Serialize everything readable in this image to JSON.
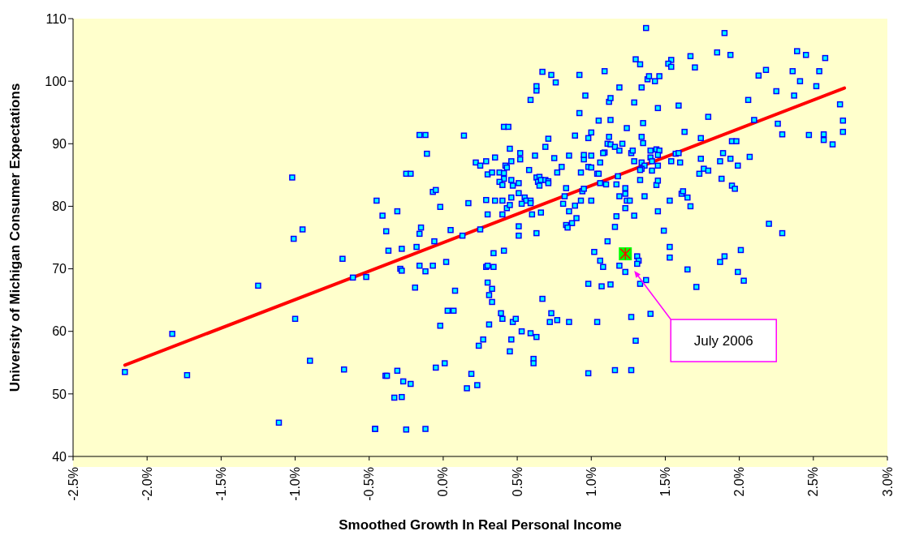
{
  "chart_data": {
    "type": "scatter",
    "xlabel": "Smoothed Growth In Real Personal Income",
    "ylabel": "University of Michigan Consumer Expectations",
    "xlim": [
      -2.5,
      3.0
    ],
    "xticks": [
      {
        "value": -2.5,
        "label": "-2.5%"
      },
      {
        "value": -2.0,
        "label": "-2.0%"
      },
      {
        "value": -1.5,
        "label": "-1.5%"
      },
      {
        "value": -1.0,
        "label": "-1.0%"
      },
      {
        "value": -0.5,
        "label": "-0.5%"
      },
      {
        "value": 0,
        "label": "0.0%"
      },
      {
        "value": 0.5,
        "label": "0.5%"
      },
      {
        "value": 1.0,
        "label": "1.0%"
      },
      {
        "value": 1.5,
        "label": "1.5%"
      },
      {
        "value": 2.0,
        "label": "2.0%"
      },
      {
        "value": 2.5,
        "label": "2.5%"
      },
      {
        "value": 3.0,
        "label": "3.0%"
      }
    ],
    "ylim": [
      40,
      110
    ],
    "yticks": [
      40,
      50,
      60,
      70,
      80,
      90,
      100,
      110
    ],
    "annotations": [
      "July 2006"
    ],
    "series": [
      {
        "color": "#0000ff",
        "marker": "square",
        "x": [
          -2.15,
          -1.83,
          -1.73,
          -1.25,
          -1.11,
          -1.02,
          -1.01,
          -1.0,
          -0.95,
          -0.9,
          -0.68,
          -0.67,
          -0.61,
          -0.52,
          -0.46,
          -0.45,
          -0.41,
          -0.39,
          -0.385,
          -0.37,
          -0.31,
          -0.33,
          -0.28,
          -0.27,
          -0.22,
          -0.31,
          -0.38,
          -0.25,
          -0.12,
          -0.22,
          -0.16,
          -0.11,
          -0.29,
          -0.28,
          -0.28,
          -0.18,
          -0.16,
          -0.15,
          -0.16,
          -0.19,
          -0.12,
          -0.07,
          -0.07,
          -0.05,
          -0.06,
          -0.02,
          0.02,
          0.05,
          -0.02,
          0.03,
          0.07,
          0.08,
          0.01,
          -0.05,
          0.14,
          0.13,
          0.17,
          0.19,
          0.16,
          0.23,
          0.24,
          0.27,
          0.22,
          0.25,
          0.29,
          0.3,
          0.33,
          0.35,
          0.29,
          0.3,
          0.25,
          0.34,
          0.29,
          0.3,
          0.34,
          0.3,
          0.33,
          0.31,
          0.33,
          0.31,
          0.39,
          0.4,
          0.47,
          0.49,
          0.46,
          0.45,
          0.53,
          0.59,
          0.63,
          0.61,
          0.61,
          0.67,
          0.73,
          0.72,
          0.77,
          0.85,
          1.04,
          0.98,
          0.98,
          1.07,
          1.13,
          1.11,
          1.02,
          1.06,
          1.08,
          0.38,
          0.41,
          0.41,
          0.38,
          0.4,
          0.42,
          0.43,
          0.45,
          0.46,
          0.52,
          0.52,
          0.46,
          0.47,
          0.4,
          0.35,
          0.4,
          0.43,
          0.45,
          0.46,
          0.51,
          0.51,
          0.55,
          0.56,
          0.59,
          0.59,
          0.53,
          0.6,
          0.66,
          0.51,
          0.51,
          0.63,
          0.41,
          0.41,
          0.44,
          0.58,
          0.62,
          0.63,
          0.65,
          0.64,
          0.65,
          0.66,
          0.69,
          0.71,
          0.71,
          0.69,
          0.71,
          0.75,
          0.8,
          0.77,
          0.85,
          0.83,
          0.82,
          0.81,
          0.89,
          0.85,
          0.9,
          0.87,
          0.83,
          0.84,
          0.93,
          0.94,
          0.95,
          0.93,
          0.98,
          1.0,
          0.95,
          0.95,
          1.0,
          1.04,
          1.05,
          1.06,
          1.09,
          1.06,
          1.1,
          1.0,
          0.89,
          0.98,
          1.0,
          1.05,
          0.92,
          0.96,
          0.59,
          0.63,
          0.63,
          0.67,
          0.73,
          0.76,
          0.92,
          1.12,
          1.37,
          1.9,
          1.3,
          1.33,
          1.09,
          1.54,
          1.52,
          1.54,
          1.67,
          1.7,
          1.85,
          1.94,
          2.39,
          2.45,
          2.58,
          2.13,
          2.18,
          2.36,
          2.54,
          2.41,
          2.52,
          2.25,
          2.37,
          2.06,
          2.68,
          2.7,
          2.7,
          2.57,
          2.57,
          2.63,
          2.47,
          2.29,
          2.26,
          2.1,
          1.79,
          1.59,
          1.45,
          1.63,
          1.74,
          1.95,
          1.98,
          1.89,
          2.07,
          1.94,
          1.87,
          1.99,
          1.73,
          1.76,
          1.79,
          1.88,
          1.95,
          1.97,
          1.71,
          2.2,
          2.29,
          2.01,
          1.9,
          1.87,
          1.99,
          2.03,
          1.65,
          1.53,
          1.53,
          1.49,
          1.45,
          1.53,
          1.61,
          1.62,
          1.65,
          1.67,
          1.74,
          1.35,
          1.34,
          1.19,
          1.13,
          1.29,
          1.38,
          1.39,
          1.43,
          1.46,
          1.13,
          1.24,
          1.34,
          1.35,
          1.12,
          1.11,
          1.13,
          1.16,
          1.21,
          1.19,
          1.08,
          1.27,
          1.28,
          1.4,
          1.44,
          1.46,
          1.45,
          1.4,
          1.41,
          1.29,
          1.34,
          1.36,
          1.34,
          1.33,
          1.41,
          1.45,
          1.54,
          1.57,
          1.59,
          1.6,
          1.18,
          1.17,
          1.33,
          1.44,
          1.45,
          1.23,
          1.19,
          1.23,
          1.24,
          1.26,
          1.36,
          1.23,
          1.29,
          1.17,
          1.16,
          1.19,
          1.23,
          1.31,
          1.32,
          1.31,
          1.37,
          1.33,
          1.27,
          1.4,
          1.3,
          1.16,
          1.27,
          -0.46,
          -0.25,
          -0.12
        ],
        "values": [
          53.5,
          59.6,
          53.0,
          67.3,
          45.4,
          84.6,
          74.8,
          62.0,
          76.3,
          55.3,
          71.6,
          53.9,
          68.6,
          68.7,
          44.4,
          80.9,
          78.5,
          52.9,
          76.0,
          72.9,
          79.2,
          49.4,
          49.5,
          52.0,
          51.6,
          53.7,
          52.9,
          85.2,
          91.4,
          85.2,
          91.4,
          88.4,
          70.0,
          69.7,
          73.2,
          73.5,
          75.6,
          76.6,
          70.5,
          67.0,
          69.6,
          70.5,
          82.3,
          82.6,
          74.4,
          79.9,
          71.1,
          76.2,
          60.9,
          63.3,
          63.3,
          66.5,
          54.9,
          54.2,
          91.3,
          75.3,
          80.5,
          53.2,
          50.9,
          51.4,
          57.7,
          58.7,
          87.0,
          86.5,
          87.2,
          85.1,
          85.4,
          87.8,
          81.0,
          78.7,
          76.3,
          72.5,
          70.3,
          70.5,
          70.3,
          67.8,
          66.8,
          65.8,
          64.7,
          61.1,
          62.9,
          62.0,
          61.5,
          62.0,
          58.7,
          56.8,
          60.0,
          59.7,
          59.1,
          55.6,
          54.9,
          65.2,
          62.9,
          61.5,
          61.8,
          61.5,
          61.5,
          53.3,
          67.6,
          67.2,
          67.5,
          74.4,
          72.7,
          71.3,
          70.3,
          85.4,
          85.3,
          84.4,
          83.9,
          83.4,
          86.5,
          86.2,
          89.2,
          87.2,
          88.5,
          87.5,
          84.2,
          83.3,
          80.9,
          80.9,
          78.7,
          79.7,
          80.2,
          81.4,
          82.1,
          83.7,
          81.4,
          80.9,
          80.9,
          80.5,
          80.4,
          78.7,
          79.0,
          76.8,
          75.3,
          75.7,
          72.9,
          92.7,
          92.7,
          85.8,
          88.1,
          84.6,
          84.7,
          83.9,
          83.3,
          84.2,
          84.2,
          84.0,
          83.7,
          89.5,
          90.8,
          87.7,
          86.3,
          85.4,
          88.1,
          82.9,
          81.6,
          80.4,
          80.1,
          79.2,
          78.1,
          77.3,
          77.0,
          76.6,
          80.9,
          82.4,
          82.8,
          85.4,
          86.3,
          86.2,
          87.5,
          88.2,
          88.1,
          85.2,
          85.2,
          87.0,
          88.6,
          83.7,
          83.5,
          80.9,
          91.3,
          90.9,
          91.8,
          93.7,
          94.9,
          97.7,
          97.0,
          98.5,
          99.2,
          101.5,
          101.0,
          99.8,
          101.0,
          96.7,
          108.5,
          107.7,
          103.5,
          102.7,
          101.6,
          103.4,
          102.8,
          102.3,
          104.0,
          102.2,
          104.6,
          104.2,
          104.8,
          104.2,
          103.7,
          100.9,
          101.8,
          101.6,
          101.6,
          100.0,
          99.2,
          98.4,
          97.7,
          97.0,
          96.3,
          93.7,
          91.9,
          91.5,
          90.6,
          89.9,
          91.4,
          91.5,
          93.2,
          93.8,
          94.3,
          96.1,
          95.7,
          91.9,
          90.9,
          90.4,
          90.4,
          88.5,
          87.9,
          87.6,
          87.2,
          86.5,
          85.2,
          86.0,
          85.7,
          84.4,
          83.3,
          82.8,
          67.1,
          77.2,
          75.7,
          73.0,
          72.0,
          71.1,
          69.5,
          68.1,
          69.9,
          73.5,
          71.8,
          76.1,
          79.2,
          80.9,
          82.0,
          82.4,
          81.4,
          80.0,
          87.6,
          93.3,
          99.0,
          99.0,
          97.3,
          96.6,
          100.3,
          100.8,
          100.0,
          100.8,
          93.8,
          92.5,
          91.1,
          90.1,
          91.1,
          90.0,
          89.9,
          89.5,
          90.0,
          88.9,
          88.5,
          88.5,
          88.9,
          88.9,
          89.1,
          88.9,
          88.2,
          87.8,
          87.2,
          87.2,
          87.0,
          86.5,
          86.0,
          85.8,
          85.7,
          86.5,
          87.2,
          88.4,
          88.5,
          87.0,
          84.8,
          83.5,
          84.2,
          83.4,
          84.1,
          82.9,
          81.6,
          82.0,
          80.9,
          80.9,
          81.6,
          79.7,
          78.5,
          78.4,
          76.7,
          70.5,
          69.5,
          72.0,
          71.3,
          70.8,
          68.2,
          67.6,
          62.3,
          62.8,
          58.5,
          53.8,
          53.8,
          44.4,
          44.3,
          44.4
        ]
      },
      {
        "type": "line",
        "color": "#ff0000",
        "x": [
          -2.15,
          2.71
        ],
        "values": [
          54.6,
          98.9
        ]
      },
      {
        "color": "#00ff00",
        "marker": "square",
        "x": [
          1.23
        ],
        "values": [
          72.4
        ]
      }
    ]
  }
}
